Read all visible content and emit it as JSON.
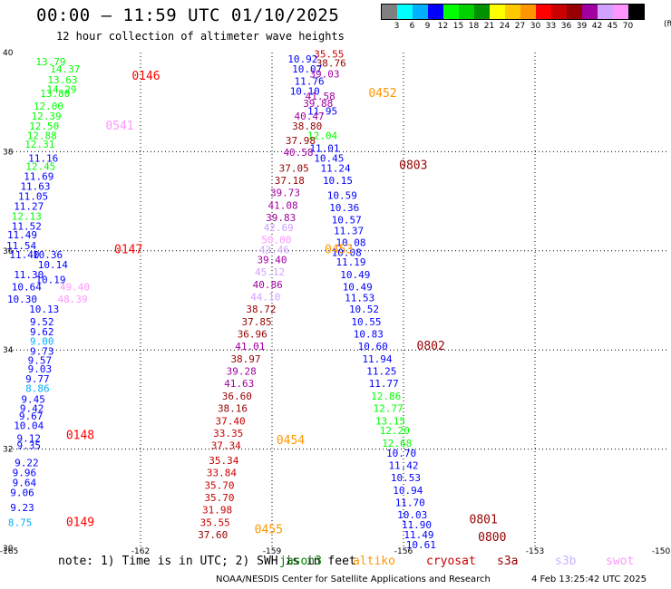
{
  "title": "00:00 – 11:59 UTC 01/10/2025",
  "subtitle": "12 hour collection of altimeter wave heights",
  "legend": {
    "colors": [
      "#808080",
      "#00ffff",
      "#00b0ff",
      "#0000ff",
      "#00ff00",
      "#00d000",
      "#009000",
      "#ffff00",
      "#ffc800",
      "#ff9600",
      "#ff0000",
      "#c80000",
      "#960000",
      "#a000a0",
      "#d2a0ff",
      "#ff96ff",
      "#000000"
    ],
    "labels": [
      "3",
      "6",
      "9",
      "12",
      "15",
      "18",
      "21",
      "24",
      "27",
      "30",
      "33",
      "36",
      "39",
      "42",
      "45",
      "70"
    ],
    "unit": "(ft)"
  },
  "note": "note: 1) Time is in UTC; 2) SWH is in feet",
  "satellites": [
    {
      "name": "jason3",
      "color": "#008000"
    },
    {
      "name": "altiko",
      "color": "#ff9600"
    },
    {
      "name": "cryosat",
      "color": "#c80000"
    },
    {
      "name": "s3a",
      "color": "#960000"
    },
    {
      "name": "s3b",
      "color": "#c8b4ff"
    },
    {
      "name": "swot",
      "color": "#ff96ff"
    }
  ],
  "credit": "NOAA/NESDIS Center for Satellite Applications and Research",
  "stamp": "4 Feb 13:25:42 UTC 2025",
  "chart_data": {
    "type": "scatter",
    "title": "00:00 – 11:59 UTC 01/10/2025",
    "subtitle": "12 hour collection of altimeter wave heights",
    "xlim": [
      -165,
      -150
    ],
    "ylim": [
      30,
      40
    ],
    "x_ticks": [
      "-165",
      "-162",
      "-159",
      "-156",
      "-153",
      "-150"
    ],
    "y_ticks": [
      "30",
      "32",
      "34",
      "36",
      "38",
      "40"
    ],
    "grid": true,
    "time_labels": [
      {
        "text": "0146",
        "lon": -162.2,
        "lat": 39.45,
        "color": "#ff0000"
      },
      {
        "text": "0541",
        "lon": -162.8,
        "lat": 38.45,
        "color": "#ff96ff"
      },
      {
        "text": "0147",
        "lon": -162.6,
        "lat": 35.95,
        "color": "#ff0000"
      },
      {
        "text": "0148",
        "lon": -163.7,
        "lat": 32.2,
        "color": "#ff0000"
      },
      {
        "text": "0149",
        "lon": -163.7,
        "lat": 30.45,
        "color": "#ff0000"
      },
      {
        "text": "0452",
        "lon": -156.8,
        "lat": 39.1,
        "color": "#ff9600"
      },
      {
        "text": "0803",
        "lon": -156.1,
        "lat": 37.65,
        "color": "#960000"
      },
      {
        "text": "0453",
        "lon": -157.8,
        "lat": 35.95,
        "color": "#ff9600"
      },
      {
        "text": "0802",
        "lon": -155.7,
        "lat": 34.0,
        "color": "#960000"
      },
      {
        "text": "0454",
        "lon": -158.9,
        "lat": 32.1,
        "color": "#ff9600"
      },
      {
        "text": "0455",
        "lon": -159.4,
        "lat": 30.3,
        "color": "#ff9600"
      },
      {
        "text": "0801",
        "lon": -154.5,
        "lat": 30.5,
        "color": "#960000"
      },
      {
        "text": "0800",
        "lon": -154.3,
        "lat": 30.15,
        "color": "#960000"
      }
    ],
    "swh_points": [
      {
        "v": "13.79",
        "lon": -164.05,
        "lat": 39.74,
        "color": "#00ff00"
      },
      {
        "v": "14.37",
        "lon": -163.72,
        "lat": 39.6,
        "color": "#00ff00"
      },
      {
        "v": "13.63",
        "lon": -163.78,
        "lat": 39.38,
        "color": "#00ff00"
      },
      {
        "v": "14.29",
        "lon": -163.8,
        "lat": 39.19,
        "color": "#00ff00"
      },
      {
        "v": "13.80",
        "lon": -163.95,
        "lat": 39.1,
        "color": "#00ff00"
      },
      {
        "v": "12.00",
        "lon": -164.1,
        "lat": 38.85,
        "color": "#00ff00"
      },
      {
        "v": "12.39",
        "lon": -164.15,
        "lat": 38.65,
        "color": "#00ff00"
      },
      {
        "v": "12.50",
        "lon": -164.2,
        "lat": 38.45,
        "color": "#00ff00"
      },
      {
        "v": "12.88",
        "lon": -164.25,
        "lat": 38.25,
        "color": "#00ff00"
      },
      {
        "v": "12.31",
        "lon": -164.3,
        "lat": 38.08,
        "color": "#00ff00"
      },
      {
        "v": "11.16",
        "lon": -164.22,
        "lat": 37.8,
        "color": "#0000ff"
      },
      {
        "v": "12.45",
        "lon": -164.28,
        "lat": 37.63,
        "color": "#00ff00"
      },
      {
        "v": "11.69",
        "lon": -164.32,
        "lat": 37.43,
        "color": "#0000ff"
      },
      {
        "v": "11.63",
        "lon": -164.4,
        "lat": 37.23,
        "color": "#0000ff"
      },
      {
        "v": "11.05",
        "lon": -164.45,
        "lat": 37.03,
        "color": "#0000ff"
      },
      {
        "v": "11.27",
        "lon": -164.55,
        "lat": 36.83,
        "color": "#0000ff"
      },
      {
        "v": "12.13",
        "lon": -164.6,
        "lat": 36.63,
        "color": "#00ff00"
      },
      {
        "v": "11.52",
        "lon": -164.6,
        "lat": 36.43,
        "color": "#0000ff"
      },
      {
        "v": "11.49",
        "lon": -164.7,
        "lat": 36.25,
        "color": "#0000ff"
      },
      {
        "v": "11.54",
        "lon": -164.72,
        "lat": 36.03,
        "color": "#0000ff"
      },
      {
        "v": "11.40",
        "lon": -164.65,
        "lat": 35.85,
        "color": "#0000ff"
      },
      {
        "v": "10.36",
        "lon": -164.12,
        "lat": 35.85,
        "color": "#0000ff"
      },
      {
        "v": "10.14",
        "lon": -164.0,
        "lat": 35.65,
        "color": "#0000ff"
      },
      {
        "v": "11.30",
        "lon": -164.55,
        "lat": 35.45,
        "color": "#0000ff"
      },
      {
        "v": "10.19",
        "lon": -164.05,
        "lat": 35.35,
        "color": "#0000ff"
      },
      {
        "v": "10.64",
        "lon": -164.6,
        "lat": 35.2,
        "color": "#0000ff"
      },
      {
        "v": "49.40",
        "lon": -163.5,
        "lat": 35.2,
        "color": "#ff96ff"
      },
      {
        "v": "10.30",
        "lon": -164.7,
        "lat": 34.95,
        "color": "#0000ff"
      },
      {
        "v": "48.39",
        "lon": -163.55,
        "lat": 34.95,
        "color": "#ff96ff"
      },
      {
        "v": "10.13",
        "lon": -164.2,
        "lat": 34.75,
        "color": "#0000ff"
      },
      {
        "v": "9.52",
        "lon": -164.25,
        "lat": 34.5,
        "color": "#0000ff"
      },
      {
        "v": "9.62",
        "lon": -164.25,
        "lat": 34.3,
        "color": "#0000ff"
      },
      {
        "v": "9.00",
        "lon": -164.25,
        "lat": 34.1,
        "color": "#00b0ff"
      },
      {
        "v": "9.73",
        "lon": -164.25,
        "lat": 33.9,
        "color": "#0000ff"
      },
      {
        "v": "9.57",
        "lon": -164.3,
        "lat": 33.72,
        "color": "#0000ff"
      },
      {
        "v": "9.03",
        "lon": -164.3,
        "lat": 33.55,
        "color": "#0000ff"
      },
      {
        "v": "9.77",
        "lon": -164.35,
        "lat": 33.35,
        "color": "#0000ff"
      },
      {
        "v": "8.86",
        "lon": -164.35,
        "lat": 33.15,
        "color": "#00b0ff"
      },
      {
        "v": "9.45",
        "lon": -164.45,
        "lat": 32.93,
        "color": "#0000ff"
      },
      {
        "v": "9.42",
        "lon": -164.48,
        "lat": 32.75,
        "color": "#0000ff"
      },
      {
        "v": "9.67",
        "lon": -164.5,
        "lat": 32.6,
        "color": "#0000ff"
      },
      {
        "v": "10.04",
        "lon": -164.55,
        "lat": 32.4,
        "color": "#0000ff"
      },
      {
        "v": "9.12",
        "lon": -164.55,
        "lat": 32.15,
        "color": "#0000ff"
      },
      {
        "v": "9.35",
        "lon": -164.55,
        "lat": 32.0,
        "color": "#0000ff"
      },
      {
        "v": "9.22",
        "lon": -164.6,
        "lat": 31.65,
        "color": "#0000ff"
      },
      {
        "v": "9.96",
        "lon": -164.65,
        "lat": 31.45,
        "color": "#0000ff"
      },
      {
        "v": "9.64",
        "lon": -164.65,
        "lat": 31.25,
        "color": "#0000ff"
      },
      {
        "v": "9.06",
        "lon": -164.7,
        "lat": 31.05,
        "color": "#0000ff"
      },
      {
        "v": "9.23",
        "lon": -164.7,
        "lat": 30.75,
        "color": "#0000ff"
      },
      {
        "v": "8.75",
        "lon": -164.75,
        "lat": 30.45,
        "color": "#00b0ff"
      },
      {
        "v": "35.55",
        "lon": -157.7,
        "lat": 39.9,
        "color": "#c80000"
      },
      {
        "v": "10.92",
        "lon": -158.3,
        "lat": 39.8,
        "color": "#0000ff"
      },
      {
        "v": "38.76",
        "lon": -157.65,
        "lat": 39.72,
        "color": "#960000"
      },
      {
        "v": "10.07",
        "lon": -158.2,
        "lat": 39.6,
        "color": "#0000ff"
      },
      {
        "v": "39.03",
        "lon": -157.8,
        "lat": 39.5,
        "color": "#a000a0"
      },
      {
        "v": "11.76",
        "lon": -158.15,
        "lat": 39.35,
        "color": "#0000ff"
      },
      {
        "v": "10.10",
        "lon": -158.25,
        "lat": 39.15,
        "color": "#0000ff"
      },
      {
        "v": "41.58",
        "lon": -157.9,
        "lat": 39.05,
        "color": "#a000a0"
      },
      {
        "v": "39.88",
        "lon": -157.95,
        "lat": 38.9,
        "color": "#a000a0"
      },
      {
        "v": "11.95",
        "lon": -157.85,
        "lat": 38.75,
        "color": "#0000ff"
      },
      {
        "v": "40.47",
        "lon": -158.15,
        "lat": 38.65,
        "color": "#a000a0"
      },
      {
        "v": "38.80",
        "lon": -158.2,
        "lat": 38.45,
        "color": "#960000"
      },
      {
        "v": "12.04",
        "lon": -157.85,
        "lat": 38.25,
        "color": "#00ff00"
      },
      {
        "v": "37.98",
        "lon": -158.35,
        "lat": 38.15,
        "color": "#960000"
      },
      {
        "v": "11.01",
        "lon": -157.8,
        "lat": 38.0,
        "color": "#0000ff"
      },
      {
        "v": "40.58",
        "lon": -158.4,
        "lat": 37.92,
        "color": "#a000a0"
      },
      {
        "v": "10.45",
        "lon": -157.7,
        "lat": 37.8,
        "color": "#0000ff"
      },
      {
        "v": "37.05",
        "lon": -158.5,
        "lat": 37.6,
        "color": "#960000"
      },
      {
        "v": "11.24",
        "lon": -157.55,
        "lat": 37.6,
        "color": "#0000ff"
      },
      {
        "v": "37.18",
        "lon": -158.6,
        "lat": 37.35,
        "color": "#960000"
      },
      {
        "v": "10.15",
        "lon": -157.5,
        "lat": 37.35,
        "color": "#0000ff"
      },
      {
        "v": "39.73",
        "lon": -158.7,
        "lat": 37.1,
        "color": "#a000a0"
      },
      {
        "v": "10.59",
        "lon": -157.4,
        "lat": 37.05,
        "color": "#0000ff"
      },
      {
        "v": "41.08",
        "lon": -158.75,
        "lat": 36.85,
        "color": "#a000a0"
      },
      {
        "v": "10.36",
        "lon": -157.35,
        "lat": 36.8,
        "color": "#0000ff"
      },
      {
        "v": "39.83",
        "lon": -158.8,
        "lat": 36.6,
        "color": "#a000a0"
      },
      {
        "v": "10.57",
        "lon": -157.3,
        "lat": 36.55,
        "color": "#0000ff"
      },
      {
        "v": "42.69",
        "lon": -158.85,
        "lat": 36.4,
        "color": "#d2a0ff"
      },
      {
        "v": "11.37",
        "lon": -157.25,
        "lat": 36.33,
        "color": "#0000ff"
      },
      {
        "v": "50.00",
        "lon": -158.9,
        "lat": 36.15,
        "color": "#ff96ff"
      },
      {
        "v": "10.08",
        "lon": -157.2,
        "lat": 36.1,
        "color": "#0000ff"
      },
      {
        "v": "43.46",
        "lon": -158.95,
        "lat": 35.95,
        "color": "#d2a0ff"
      },
      {
        "v": "10.08",
        "lon": -157.3,
        "lat": 35.9,
        "color": "#0000ff"
      },
      {
        "v": "39.40",
        "lon": -159.0,
        "lat": 35.75,
        "color": "#a000a0"
      },
      {
        "v": "11.19",
        "lon": -157.2,
        "lat": 35.7,
        "color": "#0000ff"
      },
      {
        "v": "45.12",
        "lon": -159.05,
        "lat": 35.5,
        "color": "#d2a0ff"
      },
      {
        "v": "10.49",
        "lon": -157.1,
        "lat": 35.45,
        "color": "#0000ff"
      },
      {
        "v": "40.86",
        "lon": -159.1,
        "lat": 35.25,
        "color": "#a000a0"
      },
      {
        "v": "10.49",
        "lon": -157.05,
        "lat": 35.2,
        "color": "#0000ff"
      },
      {
        "v": "44.10",
        "lon": -159.15,
        "lat": 35.0,
        "color": "#d2a0ff"
      },
      {
        "v": "11.53",
        "lon": -157.0,
        "lat": 34.98,
        "color": "#0000ff"
      },
      {
        "v": "38.72",
        "lon": -159.25,
        "lat": 34.75,
        "color": "#960000"
      },
      {
        "v": "10.52",
        "lon": -156.9,
        "lat": 34.75,
        "color": "#0000ff"
      },
      {
        "v": "37.85",
        "lon": -159.35,
        "lat": 34.5,
        "color": "#960000"
      },
      {
        "v": "10.55",
        "lon": -156.85,
        "lat": 34.5,
        "color": "#0000ff"
      },
      {
        "v": "36.96",
        "lon": -159.45,
        "lat": 34.25,
        "color": "#960000"
      },
      {
        "v": "10.83",
        "lon": -156.8,
        "lat": 34.25,
        "color": "#0000ff"
      },
      {
        "v": "41.01",
        "lon": -159.5,
        "lat": 34.0,
        "color": "#a000a0"
      },
      {
        "v": "10.60",
        "lon": -156.7,
        "lat": 34.0,
        "color": "#0000ff"
      },
      {
        "v": "38.97",
        "lon": -159.6,
        "lat": 33.75,
        "color": "#960000"
      },
      {
        "v": "11.94",
        "lon": -156.6,
        "lat": 33.75,
        "color": "#0000ff"
      },
      {
        "v": "39.28",
        "lon": -159.7,
        "lat": 33.5,
        "color": "#a000a0"
      },
      {
        "v": "11.25",
        "lon": -156.5,
        "lat": 33.5,
        "color": "#0000ff"
      },
      {
        "v": "41.63",
        "lon": -159.75,
        "lat": 33.25,
        "color": "#a000a0"
      },
      {
        "v": "11.77",
        "lon": -156.45,
        "lat": 33.25,
        "color": "#0000ff"
      },
      {
        "v": "36.60",
        "lon": -159.8,
        "lat": 33.0,
        "color": "#960000"
      },
      {
        "v": "12.86",
        "lon": -156.4,
        "lat": 33.0,
        "color": "#00ff00"
      },
      {
        "v": "38.16",
        "lon": -159.9,
        "lat": 32.75,
        "color": "#960000"
      },
      {
        "v": "12.77",
        "lon": -156.35,
        "lat": 32.75,
        "color": "#00ff00"
      },
      {
        "v": "37.40",
        "lon": -159.95,
        "lat": 32.5,
        "color": "#c80000"
      },
      {
        "v": "13.15",
        "lon": -156.3,
        "lat": 32.5,
        "color": "#00ff00"
      },
      {
        "v": "33.35",
        "lon": -160.0,
        "lat": 32.25,
        "color": "#c80000"
      },
      {
        "v": "12.20",
        "lon": -156.2,
        "lat": 32.3,
        "color": "#00ff00"
      },
      {
        "v": "37.34",
        "lon": -160.05,
        "lat": 32.0,
        "color": "#c80000"
      },
      {
        "v": "12.68",
        "lon": -156.15,
        "lat": 32.05,
        "color": "#00ff00"
      },
      {
        "v": "10.70",
        "lon": -156.05,
        "lat": 31.85,
        "color": "#0000ff"
      },
      {
        "v": "35.34",
        "lon": -160.1,
        "lat": 31.7,
        "color": "#c80000"
      },
      {
        "v": "11.42",
        "lon": -156.0,
        "lat": 31.6,
        "color": "#0000ff"
      },
      {
        "v": "33.84",
        "lon": -160.15,
        "lat": 31.45,
        "color": "#c80000"
      },
      {
        "v": "10.53",
        "lon": -155.95,
        "lat": 31.35,
        "color": "#0000ff"
      },
      {
        "v": "35.70",
        "lon": -160.2,
        "lat": 31.2,
        "color": "#c80000"
      },
      {
        "v": "10.94",
        "lon": -155.9,
        "lat": 31.1,
        "color": "#0000ff"
      },
      {
        "v": "35.70",
        "lon": -160.2,
        "lat": 30.95,
        "color": "#c80000"
      },
      {
        "v": "11.70",
        "lon": -155.85,
        "lat": 30.85,
        "color": "#0000ff"
      },
      {
        "v": "31.98",
        "lon": -160.25,
        "lat": 30.7,
        "color": "#c80000"
      },
      {
        "v": "10.03",
        "lon": -155.8,
        "lat": 30.6,
        "color": "#0000ff"
      },
      {
        "v": "35.55",
        "lon": -160.3,
        "lat": 30.45,
        "color": "#c80000"
      },
      {
        "v": "11.90",
        "lon": -155.7,
        "lat": 30.4,
        "color": "#0000ff"
      },
      {
        "v": "37.60",
        "lon": -160.35,
        "lat": 30.2,
        "color": "#960000"
      },
      {
        "v": "11.49",
        "lon": -155.65,
        "lat": 30.2,
        "color": "#0000ff"
      },
      {
        "v": "10.61",
        "lon": -155.6,
        "lat": 30.0,
        "color": "#0000ff"
      }
    ]
  }
}
